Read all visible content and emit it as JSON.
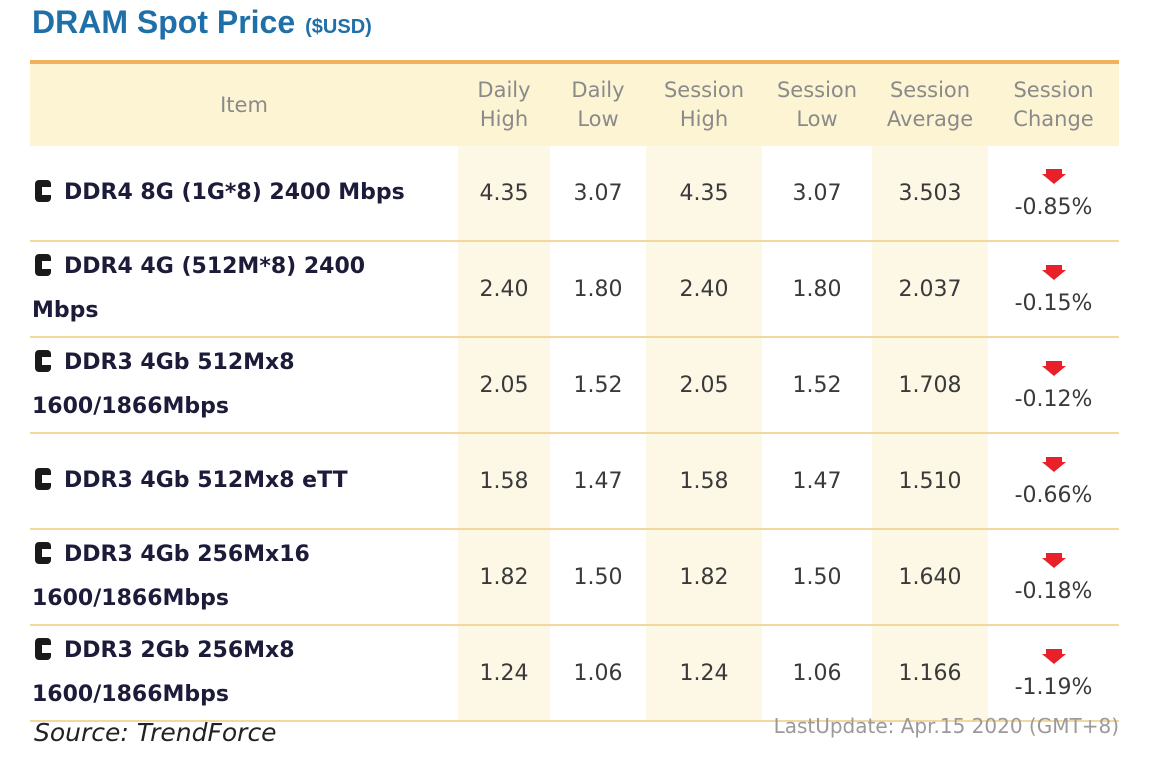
{
  "title": {
    "main": "DRAM Spot Price",
    "unit": "($USD)"
  },
  "table": {
    "headers": {
      "item": "Item",
      "daily_high_1": "Daily",
      "daily_high_2": "High",
      "daily_low_1": "Daily",
      "daily_low_2": "Low",
      "session_high_1": "Session",
      "session_high_2": "High",
      "session_low_1": "Session",
      "session_low_2": "Low",
      "session_avg_1": "Session",
      "session_avg_2": "Average",
      "session_chg_1": "Session",
      "session_chg_2": "Change"
    },
    "rows": [
      {
        "item_line1": "DDR4 8G (1G*8) 2400 Mbps",
        "item_line2": "",
        "daily_high": "4.35",
        "daily_low": "3.07",
        "session_high": "4.35",
        "session_low": "3.07",
        "session_avg": "3.503",
        "session_change": "-0.85%"
      },
      {
        "item_line1": "DDR4 4G (512M*8) 2400",
        "item_line2": "Mbps",
        "daily_high": "2.40",
        "daily_low": "1.80",
        "session_high": "2.40",
        "session_low": "1.80",
        "session_avg": "2.037",
        "session_change": "-0.15%"
      },
      {
        "item_line1": "DDR3 4Gb 512Mx8",
        "item_line2": "1600/1866Mbps",
        "daily_high": "2.05",
        "daily_low": "1.52",
        "session_high": "2.05",
        "session_low": "1.52",
        "session_avg": "1.708",
        "session_change": "-0.12%"
      },
      {
        "item_line1": "DDR3 4Gb 512Mx8 eTT",
        "item_line2": "",
        "daily_high": "1.58",
        "daily_low": "1.47",
        "session_high": "1.58",
        "session_low": "1.47",
        "session_avg": "1.510",
        "session_change": "-0.66%"
      },
      {
        "item_line1": "DDR3 4Gb 256Mx16",
        "item_line2": "1600/1866Mbps",
        "daily_high": "1.82",
        "daily_low": "1.50",
        "session_high": "1.82",
        "session_low": "1.50",
        "session_avg": "1.640",
        "session_change": "-0.18%"
      },
      {
        "item_line1": "DDR3 2Gb 256Mx8",
        "item_line2": "1600/1866Mbps",
        "daily_high": "1.24",
        "daily_low": "1.06",
        "session_high": "1.24",
        "session_low": "1.06",
        "session_avg": "1.166",
        "session_change": "-1.19%"
      }
    ]
  },
  "icons": {
    "item": "memory-chip-icon",
    "change": "down-arrow-icon"
  },
  "colors": {
    "title": "#1f6fa8",
    "header_bg": "#fdf4d4",
    "header_border": "#f2b05f",
    "arrow": "#e8202a"
  },
  "footer": {
    "source": "Source: TrendForce",
    "last_update": "LastUpdate: Apr.15 2020 (GMT+8)"
  }
}
